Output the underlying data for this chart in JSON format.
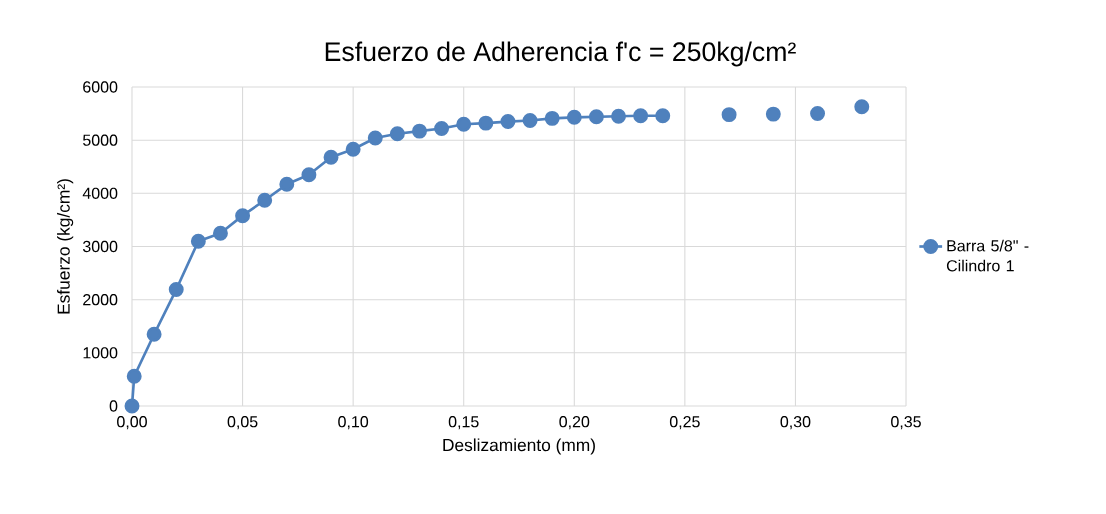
{
  "chart_data": {
    "type": "line",
    "title": "Esfuerzo de Adherencia f'c = 250kg/cm²",
    "xlabel": "Deslizamiento (mm)",
    "ylabel": "Esfuerzo (kg/cm²)",
    "x": [
      0,
      0.001,
      0.01,
      0.02,
      0.03,
      0.04,
      0.05,
      0.06,
      0.07,
      0.08,
      0.09,
      0.1,
      0.11,
      0.12,
      0.13,
      0.14,
      0.15,
      0.16,
      0.17,
      0.18,
      0.19,
      0.2,
      0.21,
      0.22,
      0.23,
      0.24,
      0.25,
      0.27,
      0.28,
      0.29,
      0.3,
      0.31,
      0.32,
      0.33
    ],
    "series": [
      {
        "name": "Barra 5/8\" - Cilindro 1",
        "color": "#4f81bd",
        "values": [
          0,
          560,
          1350,
          2190,
          3100,
          3250,
          3580,
          3870,
          4170,
          4350,
          4680,
          4830,
          5040,
          5120,
          5170,
          5220,
          5300,
          5320,
          5350,
          5370,
          5410,
          5430,
          5440,
          5450,
          5460,
          5460,
          null,
          5480,
          null,
          5490,
          null,
          5500,
          null,
          5630
        ]
      }
    ],
    "xlim": [
      0,
      0.35
    ],
    "ylim": [
      0,
      6000
    ],
    "xticks": [
      {
        "value": 0,
        "label": "0,00"
      },
      {
        "value": 0.05,
        "label": "0,05"
      },
      {
        "value": 0.1,
        "label": "0,10"
      },
      {
        "value": 0.15,
        "label": "0,15"
      },
      {
        "value": 0.2,
        "label": "0,20"
      },
      {
        "value": 0.25,
        "label": "0,25"
      },
      {
        "value": 0.3,
        "label": "0,30"
      },
      {
        "value": 0.35,
        "label": "0,35"
      }
    ],
    "yticks": [
      0,
      1000,
      2000,
      3000,
      4000,
      5000,
      6000
    ],
    "grid": true,
    "legend": "right",
    "marker": "circle",
    "line_style": "solid"
  }
}
